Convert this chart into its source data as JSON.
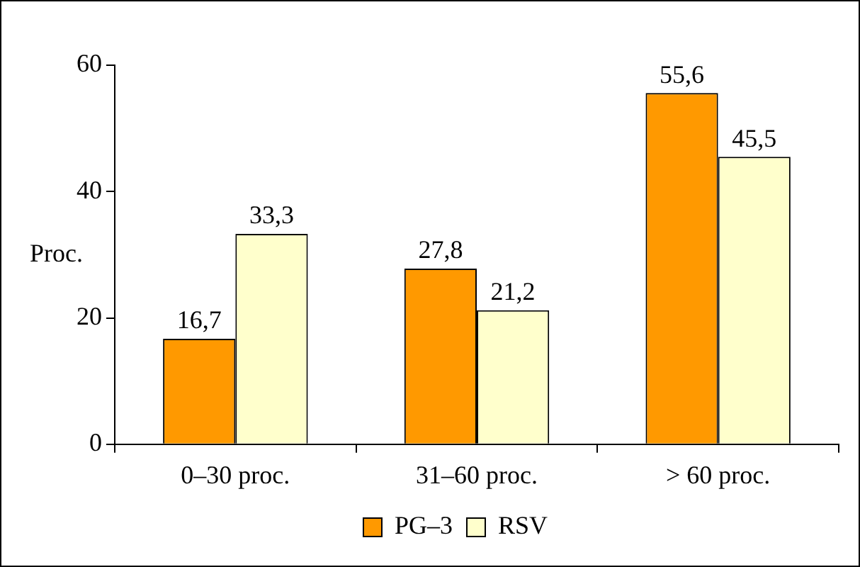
{
  "chart_data": {
    "type": "bar",
    "ylabel": "Proc.",
    "categories": [
      "0–30 proc.",
      "31–60 proc.",
      "> 60 proc."
    ],
    "series": [
      {
        "name": "PG–3",
        "color": "#ff9900",
        "values": [
          16.7,
          27.8,
          55.6
        ],
        "value_labels": [
          "16,7",
          "27,8",
          "55,6"
        ]
      },
      {
        "name": "RSV",
        "color": "#ffffcc",
        "values": [
          33.3,
          21.2,
          45.5
        ],
        "value_labels": [
          "33,3",
          "21,2",
          "45,5"
        ]
      }
    ],
    "ylim": [
      0,
      60
    ],
    "yticks": [
      0,
      20,
      40,
      60
    ],
    "grid": false,
    "legend": "bottom"
  }
}
